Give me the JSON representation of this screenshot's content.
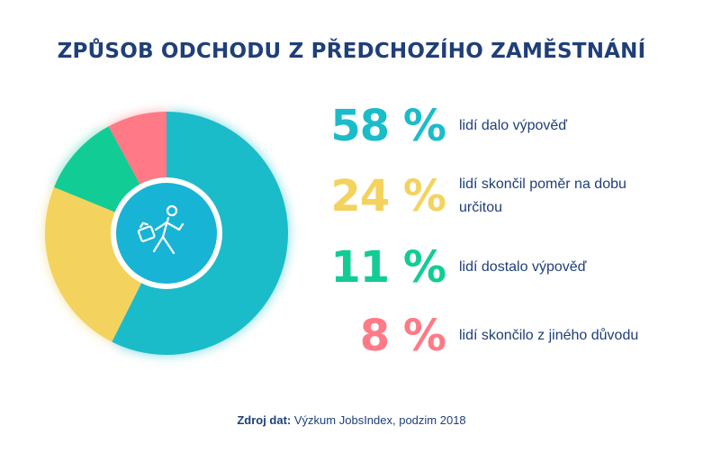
{
  "title": "ZPŮSOB ODCHODU Z PŘEDCHOZÍHO ZAMĚSTNÁNÍ",
  "icon": "walking-businessman-with-briefcase-icon",
  "chart_data": {
    "type": "pie",
    "title": "ZPŮSOB ODCHODU Z PŘEDCHOZÍHO ZAMĚSTNÁNÍ",
    "slices": [
      {
        "value": 58,
        "pct_text": "58 %",
        "label": "lidí dalo výpověď",
        "color": "#1bbcc9"
      },
      {
        "value": 24,
        "pct_text": "24 %",
        "label": "lidí skončil poměr na dobu určitou",
        "color": "#f3d35e"
      },
      {
        "value": 11,
        "pct_text": "11 %",
        "label": "lidí dostalo výpověď",
        "color": "#12cc95"
      },
      {
        "value": 8,
        "pct_text": "8 %",
        "label": "lidí skončilo z jiného důvodu",
        "color": "#ff7a86"
      }
    ],
    "start_angle_deg": 0,
    "direction": "clockwise"
  },
  "stats": [
    {
      "pct": "58 %",
      "label_lines": [
        "lidí dalo výpověď"
      ],
      "color": "#1bbcc9"
    },
    {
      "pct": "24 %",
      "label_lines": [
        "lidí skončil poměr na dobu",
        "určitou"
      ],
      "color": "#f3d35e"
    },
    {
      "pct": "11 %",
      "label_lines": [
        "lidí dostalo výpověď"
      ],
      "color": "#12cc95"
    },
    {
      "pct": "8 %",
      "label_lines": [
        "lidí skončilo z jiného důvodu"
      ],
      "color": "#ff7a86"
    }
  ],
  "source": {
    "prefix": "Zdroj dat:",
    "text": "Výzkum JobsIndex, podzim 2018"
  },
  "colors": {
    "title": "#1f3f78",
    "center_circle": "#18b4d6"
  }
}
